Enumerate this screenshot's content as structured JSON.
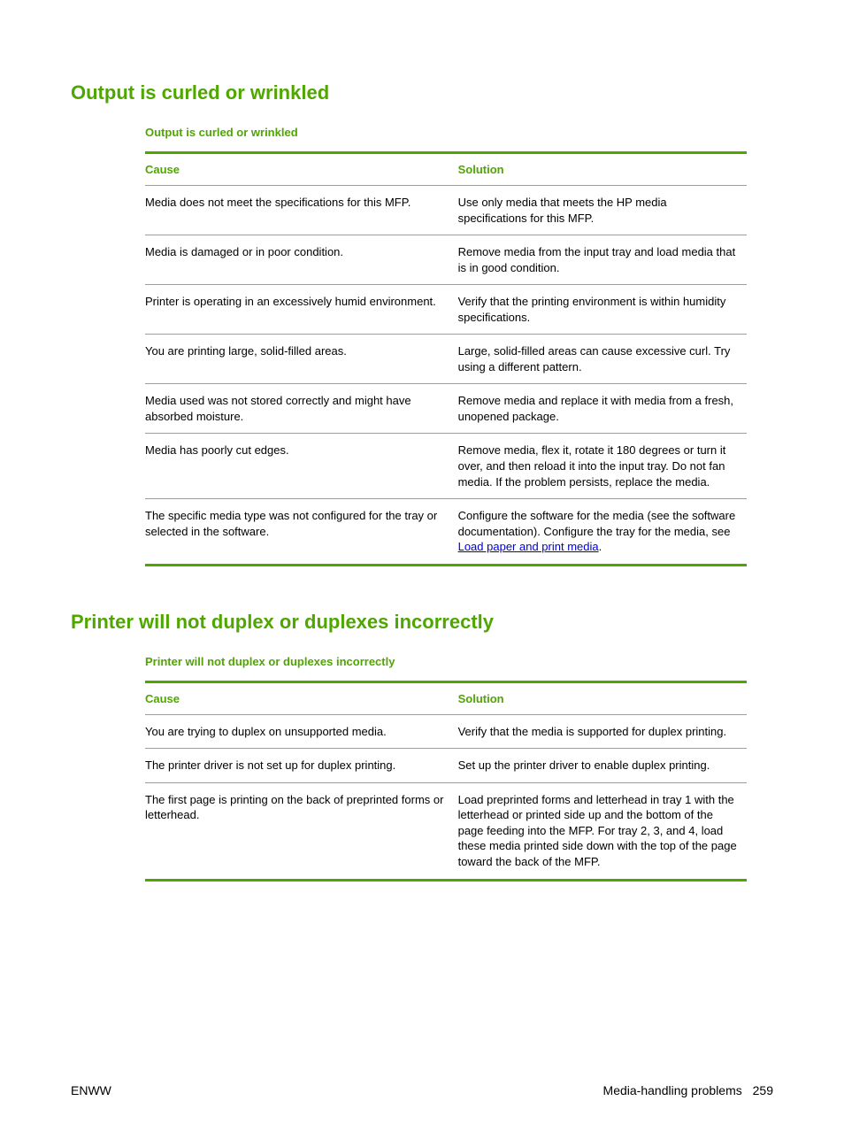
{
  "colors": {
    "accent": "#4fa600",
    "rule": "#9d9d9d",
    "link": "#0000cc",
    "text": "#000000",
    "background": "#ffffff"
  },
  "section1": {
    "heading": "Output is curled or wrinkled",
    "table_title": "Output is curled or wrinkled",
    "col_cause": "Cause",
    "col_solution": "Solution",
    "rows": [
      {
        "cause": "Media does not meet the specifications for this MFP.",
        "solution": "Use only media that meets the HP media specifications for this MFP."
      },
      {
        "cause": "Media is damaged or in poor condition.",
        "solution": "Remove media from the input tray and load media that is in good condition."
      },
      {
        "cause": "Printer is operating in an excessively humid environment.",
        "solution": "Verify that the printing environment is within humidity specifications."
      },
      {
        "cause": "You are printing large, solid-filled areas.",
        "solution": "Large, solid-filled areas can cause excessive curl. Try using a different pattern."
      },
      {
        "cause": "Media used was not stored correctly and might have absorbed moisture.",
        "solution": "Remove media and replace it with media from a fresh, unopened package."
      },
      {
        "cause": "Media has poorly cut edges.",
        "solution": "Remove media, flex it, rotate it 180 degrees or turn it over, and then reload it into the input tray. Do not fan media. If the problem persists, replace the media."
      },
      {
        "cause": "The specific media type was not configured for the tray or selected in the software.",
        "solution_pre": "Configure the software for the media (see the software documentation). Configure the tray for the media, see ",
        "solution_link": "Load paper and print media",
        "solution_post": "."
      }
    ]
  },
  "section2": {
    "heading": "Printer will not duplex or duplexes incorrectly",
    "table_title": "Printer will not duplex or duplexes incorrectly",
    "col_cause": "Cause",
    "col_solution": "Solution",
    "rows": [
      {
        "cause": "You are trying to duplex on unsupported media.",
        "solution": "Verify that the media is supported for duplex printing."
      },
      {
        "cause": "The printer driver is not set up for duplex printing.",
        "solution": "Set up the printer driver to enable duplex printing."
      },
      {
        "cause": "The first page is printing on the back of preprinted forms or letterhead.",
        "solution": "Load preprinted forms and letterhead in tray 1 with the letterhead or printed side up and the bottom of the page feeding into the MFP. For tray 2, 3, and 4, load these media printed side down with the top of the page toward the back of the MFP."
      }
    ]
  },
  "footer": {
    "left": "ENWW",
    "right_label": "Media-handling problems",
    "page_number": "259"
  }
}
